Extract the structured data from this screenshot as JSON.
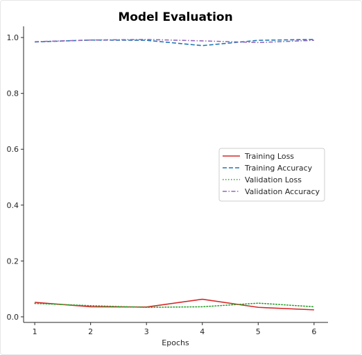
{
  "chart_data": {
    "type": "line",
    "title": "Model Evaluation",
    "xlabel": "Epochs",
    "ylabel": "",
    "x": [
      1,
      2,
      3,
      4,
      5,
      6
    ],
    "xticks": [
      "1",
      "2",
      "3",
      "4",
      "5",
      "6"
    ],
    "yticks": [
      "0.0",
      "0.2",
      "0.4",
      "0.6",
      "0.8",
      "1.0"
    ],
    "xlim": [
      0.8,
      6.25
    ],
    "ylim": [
      -0.02,
      1.04
    ],
    "grid": false,
    "legend_position": "center-right",
    "series": [
      {
        "name": "Training Loss",
        "values": [
          0.052,
          0.036,
          0.035,
          0.063,
          0.034,
          0.025
        ],
        "color": "#d62728",
        "linestyle": "solid"
      },
      {
        "name": "Training Accuracy",
        "values": [
          0.984,
          0.991,
          0.99,
          0.971,
          0.99,
          0.993
        ],
        "color": "#1f77b4",
        "linestyle": "dashed"
      },
      {
        "name": "Validation Loss",
        "values": [
          0.048,
          0.04,
          0.034,
          0.036,
          0.049,
          0.036
        ],
        "color": "#2ca02c",
        "linestyle": "dotted"
      },
      {
        "name": "Validation Accuracy",
        "values": [
          0.985,
          0.991,
          0.993,
          0.988,
          0.982,
          0.99
        ],
        "color": "#9467bd",
        "linestyle": "dashdot"
      }
    ]
  }
}
